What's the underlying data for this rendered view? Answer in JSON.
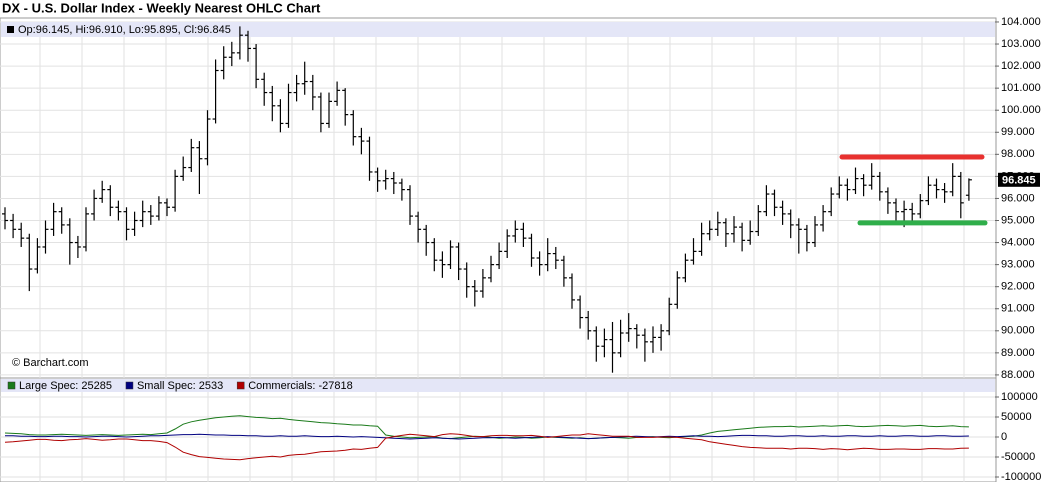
{
  "chart_data": [
    {
      "type": "ohlc",
      "title": "DX - U.S. Dollar Index - Weekly Nearest OHLC Chart",
      "info_label": "Op:96.145, Hi:96.910, Lo:95.895, Cl:96.845",
      "watermark": "© Barchart.com",
      "ylim": [
        87.86,
        104.18
      ],
      "yticks": [
        {
          "value": 88,
          "label": "88.000"
        },
        {
          "value": 89,
          "label": "89.000"
        },
        {
          "value": 90,
          "label": "90.000"
        },
        {
          "value": 91,
          "label": "91.000"
        },
        {
          "value": 92,
          "label": "92.000"
        },
        {
          "value": 93,
          "label": "93.000"
        },
        {
          "value": 94,
          "label": "94.000"
        },
        {
          "value": 95,
          "label": "95.000"
        },
        {
          "value": 96,
          "label": "96.000"
        },
        {
          "value": 97,
          "label": "97.000"
        },
        {
          "value": 98,
          "label": "98.000"
        },
        {
          "value": 99,
          "label": "99.000"
        },
        {
          "value": 100,
          "label": "100.000"
        },
        {
          "value": 101,
          "label": "101.000"
        },
        {
          "value": 102,
          "label": "102.000"
        },
        {
          "value": 103,
          "label": "103.000"
        },
        {
          "value": 104,
          "label": "104.000"
        }
      ],
      "grid": true,
      "hlines": [
        {
          "value": 97.88,
          "color": "#e8312f"
        },
        {
          "value": 94.89,
          "color": "#2fae4a"
        }
      ],
      "series": [
        {
          "color": "#000000",
          "open": [
            95.3,
            95.0,
            94.6,
            94.2,
            92.8,
            93.8,
            94.6,
            95.4,
            94.8,
            94.0,
            93.8,
            95.3,
            96.0,
            96.4,
            95.6,
            95.4,
            94.6,
            95.0,
            95.4,
            95.2,
            95.8,
            95.6,
            97.0,
            97.4,
            98.3,
            97.8,
            99.6,
            101.8,
            102.4,
            102.6,
            103.4,
            102.8,
            101.4,
            100.8,
            100.2,
            99.4,
            100.8,
            101.2,
            101.3,
            100.6,
            99.4,
            100.4,
            100.9,
            99.8,
            98.8,
            98.6,
            97.2,
            96.8,
            96.9,
            96.7,
            96.4,
            95.2,
            94.6,
            94.0,
            93.2,
            93.0,
            93.8,
            92.8,
            92.0,
            91.8,
            92.4,
            93.0,
            93.6,
            94.3,
            94.6,
            94.2,
            93.3,
            93.0,
            93.5,
            93.2,
            92.4,
            91.4,
            90.6,
            90.0,
            89.3,
            89.6,
            89.0,
            89.9,
            90.1,
            89.8,
            89.5,
            89.7,
            90.0,
            91.2,
            92.4,
            93.2,
            93.6,
            94.4,
            94.6,
            94.9,
            94.4,
            94.7,
            94.1,
            94.5,
            95.4,
            96.2,
            95.6,
            95.3,
            94.8,
            94.6,
            94.0,
            94.8,
            95.4,
            96.2,
            96.6,
            96.4,
            96.9,
            96.6,
            97.0,
            96.3,
            95.8,
            95.4,
            95.5,
            95.3,
            95.9,
            96.6,
            96.4,
            96.3,
            97.0,
            96.145
          ],
          "high": [
            95.6,
            95.3,
            94.9,
            94.4,
            94.2,
            95.0,
            95.8,
            95.6,
            95.1,
            94.3,
            95.6,
            96.4,
            96.8,
            96.6,
            95.9,
            95.6,
            95.4,
            95.9,
            95.7,
            96.1,
            96.0,
            97.3,
            97.9,
            98.7,
            98.6,
            100.0,
            102.3,
            102.9,
            103.1,
            103.8,
            103.6,
            103.0,
            101.7,
            101.1,
            100.5,
            101.2,
            101.6,
            102.2,
            101.6,
            100.8,
            100.8,
            101.3,
            101.0,
            100.0,
            99.2,
            98.8,
            97.4,
            97.3,
            97.2,
            96.9,
            96.6,
            95.4,
            94.8,
            94.2,
            93.6,
            94.1,
            94.0,
            93.1,
            92.3,
            92.8,
            93.4,
            94.0,
            94.6,
            95.0,
            94.9,
            94.4,
            93.6,
            94.2,
            93.8,
            93.4,
            92.6,
            91.6,
            90.9,
            90.2,
            90.1,
            90.4,
            90.5,
            90.8,
            90.3,
            90.1,
            90.2,
            90.3,
            91.5,
            92.7,
            93.5,
            94.2,
            94.9,
            95.0,
            95.4,
            95.1,
            95.2,
            94.9,
            95.0,
            95.7,
            96.6,
            96.4,
            95.9,
            95.5,
            95.1,
            94.8,
            95.2,
            95.7,
            96.5,
            97.0,
            96.9,
            97.4,
            97.1,
            97.6,
            97.2,
            96.5,
            96.0,
            95.9,
            95.8,
            96.2,
            97.0,
            96.9,
            96.7,
            97.6,
            97.2,
            96.91
          ],
          "low": [
            94.6,
            94.2,
            93.8,
            91.8,
            92.6,
            93.5,
            94.3,
            94.4,
            93.0,
            93.3,
            93.6,
            95.0,
            95.8,
            95.2,
            95.0,
            94.1,
            94.3,
            94.7,
            94.8,
            95.0,
            95.2,
            95.4,
            96.8,
            97.2,
            96.2,
            97.5,
            99.4,
            101.4,
            102.0,
            102.3,
            102.2,
            101.0,
            100.2,
            99.5,
            99.0,
            99.2,
            100.4,
            100.7,
            100.0,
            99.0,
            99.2,
            100.2,
            99.3,
            98.4,
            98.0,
            96.8,
            96.3,
            96.4,
            96.2,
            95.9,
            94.8,
            94.0,
            93.4,
            92.7,
            92.4,
            92.8,
            92.3,
            91.5,
            91.1,
            91.5,
            92.2,
            92.8,
            93.3,
            94.0,
            93.8,
            92.9,
            92.5,
            92.7,
            92.8,
            92.0,
            91.0,
            90.1,
            89.6,
            88.6,
            88.8,
            88.1,
            88.8,
            89.5,
            89.2,
            88.6,
            89.0,
            89.1,
            89.8,
            91.0,
            92.2,
            93.0,
            93.4,
            94.1,
            94.3,
            93.8,
            94.0,
            93.6,
            93.9,
            94.3,
            95.2,
            95.2,
            94.8,
            94.2,
            93.5,
            93.6,
            93.8,
            94.5,
            95.2,
            96.0,
            95.9,
            96.2,
            96.1,
            96.4,
            95.9,
            95.3,
            95.0,
            94.7,
            94.9,
            95.1,
            95.7,
            96.0,
            95.8,
            96.1,
            95.1,
            95.895
          ],
          "close": [
            95.0,
            94.6,
            94.2,
            92.8,
            93.8,
            94.6,
            95.4,
            94.8,
            94.0,
            93.8,
            95.3,
            96.0,
            96.4,
            95.6,
            95.4,
            94.6,
            95.0,
            95.4,
            95.2,
            95.8,
            95.6,
            97.0,
            97.4,
            98.3,
            97.8,
            99.6,
            101.8,
            102.4,
            102.6,
            103.4,
            102.8,
            101.4,
            100.8,
            100.2,
            99.4,
            100.8,
            101.2,
            101.3,
            100.6,
            99.4,
            100.4,
            100.9,
            99.8,
            98.8,
            98.6,
            97.2,
            96.8,
            96.9,
            96.7,
            96.4,
            95.2,
            94.6,
            94.0,
            93.2,
            93.0,
            93.8,
            92.8,
            92.0,
            91.8,
            92.4,
            93.0,
            93.6,
            94.3,
            94.6,
            94.2,
            93.3,
            93.0,
            93.5,
            93.2,
            92.4,
            91.4,
            90.6,
            90.0,
            89.3,
            89.6,
            89.0,
            89.9,
            90.1,
            89.8,
            89.5,
            89.7,
            90.0,
            91.2,
            92.4,
            93.2,
            93.6,
            94.4,
            94.6,
            94.9,
            94.4,
            94.7,
            94.1,
            94.5,
            95.4,
            96.2,
            95.6,
            95.3,
            94.8,
            94.6,
            94.0,
            94.8,
            95.4,
            96.2,
            96.6,
            96.4,
            96.9,
            96.6,
            97.0,
            96.3,
            95.8,
            95.4,
            95.5,
            95.3,
            95.9,
            96.6,
            96.4,
            96.3,
            97.0,
            95.8,
            96.845
          ]
        }
      ]
    },
    {
      "type": "line",
      "ylim": [
        -112500,
        147500
      ],
      "yticks": [
        100000,
        50000,
        0,
        -50000,
        -100000
      ],
      "grid": true,
      "series": [
        {
          "legend_label": "Large Spec: 25285",
          "color": "#1a7a1a",
          "values": [
            10000,
            9000,
            8000,
            6000,
            5000,
            5000,
            6000,
            7000,
            6000,
            5000,
            4000,
            5000,
            6000,
            5000,
            4000,
            5000,
            6000,
            7000,
            6000,
            8000,
            10000,
            20000,
            32000,
            38000,
            42000,
            45000,
            48000,
            50000,
            52000,
            53000,
            51000,
            49000,
            48000,
            46000,
            47000,
            44000,
            42000,
            40000,
            38000,
            36000,
            35000,
            33000,
            32000,
            30000,
            30000,
            28000,
            27000,
            5000,
            2000,
            0,
            -2000,
            -1000,
            0,
            1000,
            -3000,
            -4000,
            -2000,
            0,
            2000,
            1000,
            -1000,
            -3000,
            -2000,
            0,
            -1000,
            -3000,
            -2000,
            0,
            -1000,
            -2000,
            -3000,
            -2000,
            -4000,
            -3000,
            -2000,
            -1000,
            -2000,
            -3000,
            -1000,
            0,
            1000,
            -1000,
            -2000,
            0,
            1000,
            2000,
            5000,
            10000,
            14000,
            16000,
            18000,
            20000,
            22000,
            24000,
            25000,
            26000,
            26000,
            27000,
            25000,
            26000,
            27000,
            28000,
            27000,
            28000,
            29000,
            27000,
            26000,
            27000,
            28000,
            29000,
            28000,
            27000,
            28000,
            29000,
            27000,
            26000,
            27000,
            28000,
            26000,
            25285
          ]
        },
        {
          "legend_label": "Small Spec: 2533",
          "color": "#000080",
          "values": [
            3000,
            3000,
            2000,
            2000,
            1000,
            1000,
            2000,
            2000,
            1000,
            1000,
            0,
            1000,
            2000,
            2000,
            1000,
            0,
            1000,
            2000,
            3000,
            3000,
            4000,
            5000,
            6000,
            6000,
            7000,
            6000,
            5000,
            5000,
            4000,
            4000,
            3000,
            3000,
            2000,
            2000,
            3000,
            2000,
            2000,
            3000,
            2000,
            1000,
            1000,
            2000,
            1000,
            0,
            1000,
            0,
            -1000,
            -2000,
            -3000,
            -4000,
            -5000,
            -4000,
            -3000,
            -2000,
            -3000,
            -4000,
            -5000,
            -4000,
            -3000,
            -2000,
            -2000,
            -1000,
            -2000,
            -3000,
            -2000,
            -1000,
            0,
            1000,
            0,
            -1000,
            -2000,
            -3000,
            -4000,
            -3000,
            -2000,
            -1000,
            0,
            1000,
            2000,
            1000,
            0,
            1000,
            2000,
            1000,
            2000,
            3000,
            2000,
            2000,
            1000,
            2000,
            3000,
            4000,
            4000,
            3000,
            3000,
            2000,
            2000,
            3000,
            3000,
            2000,
            2000,
            3000,
            2000,
            2000,
            3000,
            3000,
            2000,
            2000,
            3000,
            2000,
            2000,
            3000,
            3000,
            2000,
            2000,
            3000,
            3000,
            2000,
            2000,
            2533
          ]
        },
        {
          "legend_label": "Commercials: -27818",
          "color": "#b00000",
          "values": [
            -13000,
            -12000,
            -10000,
            -8000,
            -6000,
            -6000,
            -8000,
            -9000,
            -7000,
            -6000,
            -4000,
            -6000,
            -8000,
            -7000,
            -5000,
            -5000,
            -7000,
            -9000,
            -9000,
            -11000,
            -14000,
            -25000,
            -38000,
            -44000,
            -49000,
            -51000,
            -53000,
            -55000,
            -56000,
            -57000,
            -54000,
            -52000,
            -50000,
            -48000,
            -50000,
            -46000,
            -44000,
            -43000,
            -40000,
            -37000,
            -36000,
            -35000,
            -33000,
            -30000,
            -31000,
            -28000,
            -26000,
            -3000,
            1000,
            4000,
            7000,
            5000,
            3000,
            1000,
            6000,
            8000,
            7000,
            4000,
            1000,
            1000,
            3000,
            4000,
            4000,
            3000,
            3000,
            4000,
            2000,
            -1000,
            1000,
            3000,
            5000,
            5000,
            8000,
            6000,
            4000,
            2000,
            2000,
            2000,
            -1000,
            -1000,
            -1000,
            0,
            0,
            -1000,
            -3000,
            -5000,
            -7000,
            -12000,
            -15000,
            -18000,
            -21000,
            -24000,
            -26000,
            -27000,
            -28000,
            -28000,
            -28000,
            -30000,
            -28000,
            -28000,
            -29000,
            -31000,
            -29000,
            -30000,
            -32000,
            -30000,
            -28000,
            -29000,
            -31000,
            -31000,
            -30000,
            -30000,
            -31000,
            -31000,
            -29000,
            -29000,
            -30000,
            -30000,
            -28000,
            -27818
          ]
        }
      ]
    }
  ]
}
